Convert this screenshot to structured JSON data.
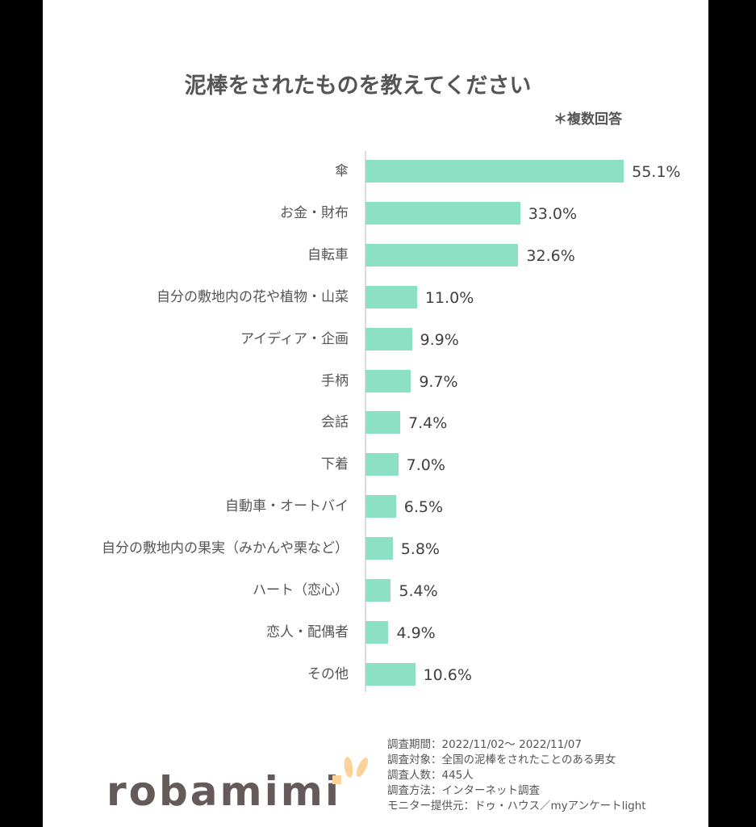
{
  "title": "泥棒をされたものを教えてください",
  "note": "＊複数回答",
  "chart_data": {
    "type": "bar",
    "orientation": "horizontal",
    "title": "泥棒をされたものを教えてください",
    "subtitle": "＊複数回答",
    "xlabel": "",
    "ylabel": "",
    "unit": "%",
    "grid": false,
    "legend": null,
    "bar_color": "#8ce0c4",
    "categories": [
      "傘",
      "お金・財布",
      "自転車",
      "自分の敷地内の花や植物・山菜",
      "アイディア・企画",
      "手柄",
      "会話",
      "下着",
      "自動車・オートバイ",
      "自分の敷地内の果実（みかんや栗など）",
      "ハート（恋心）",
      "恋人・配偶者",
      "その他"
    ],
    "values": [
      55.1,
      33.0,
      32.6,
      11.0,
      9.9,
      9.7,
      7.4,
      7.0,
      6.5,
      5.8,
      5.4,
      4.9,
      10.6
    ],
    "labels": [
      "55.1%",
      "33.0%",
      "32.6%",
      "11.0%",
      "9.9%",
      "9.7%",
      "7.4%",
      "7.0%",
      "6.5%",
      "5.8%",
      "5.4%",
      "4.9%",
      "10.6%"
    ]
  },
  "footer": {
    "logo": "robamimi",
    "meta": [
      "調査期間：2022/11/02～ 2022/11/07",
      "調査対象：全国の泥棒をされたことのある男女",
      "調査人数：445人",
      "調査方法：インターネット調査",
      "モニター提供元：ドゥ・ハウス／myアンケートlight"
    ]
  }
}
